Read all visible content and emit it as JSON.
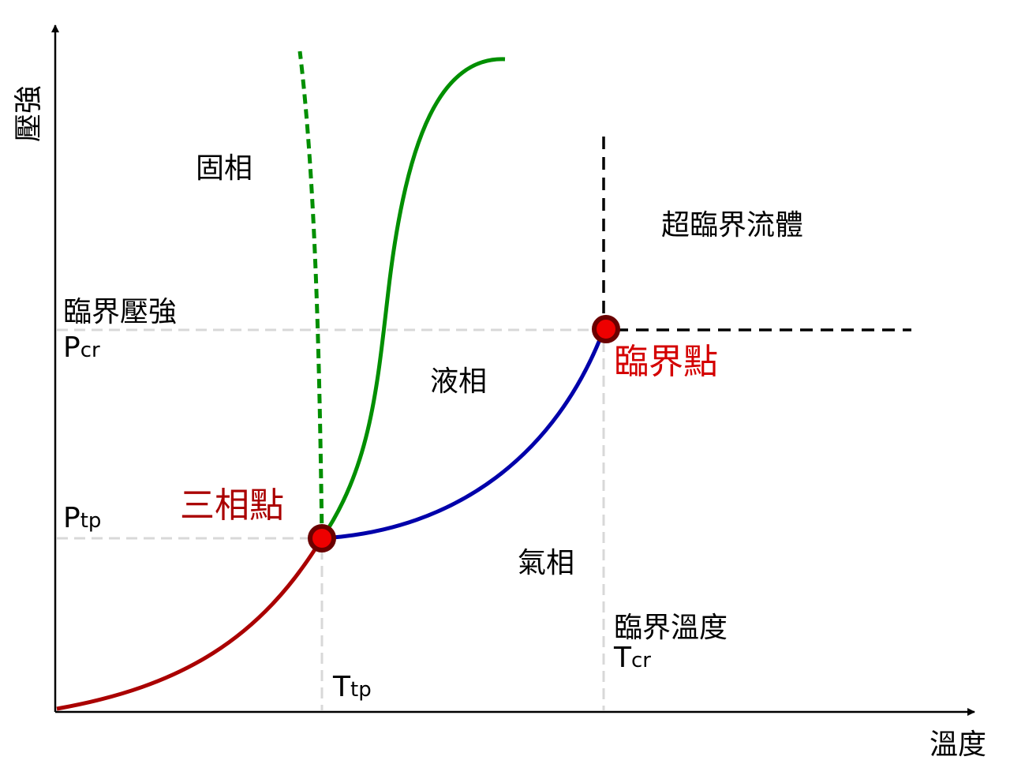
{
  "axes": {
    "x_label": "溫度",
    "y_label": "壓強"
  },
  "regions": {
    "solid": "固相",
    "liquid": "液相",
    "gas": "氣相",
    "supercritical": "超臨界流體"
  },
  "points": {
    "triple": "三相點",
    "critical": "臨界點"
  },
  "critical_pressure": {
    "name": "臨界壓強",
    "symbol": "P",
    "sub": "cr"
  },
  "triple_pressure": {
    "symbol": "P",
    "sub": "tp"
  },
  "critical_temperature": {
    "name": "臨界溫度",
    "symbol": "T",
    "sub": "cr"
  },
  "triple_temperature": {
    "symbol": "T",
    "sub": "tp"
  },
  "colors": {
    "sublimation_curve": "#aa0000",
    "vaporization_curve": "#0000aa",
    "melting_curve": "#008f00",
    "point_fill": "#ee0000",
    "point_ring": "#6b0000",
    "guide_lines": "#d8d8d8",
    "critical_boundary": "#000000"
  }
}
